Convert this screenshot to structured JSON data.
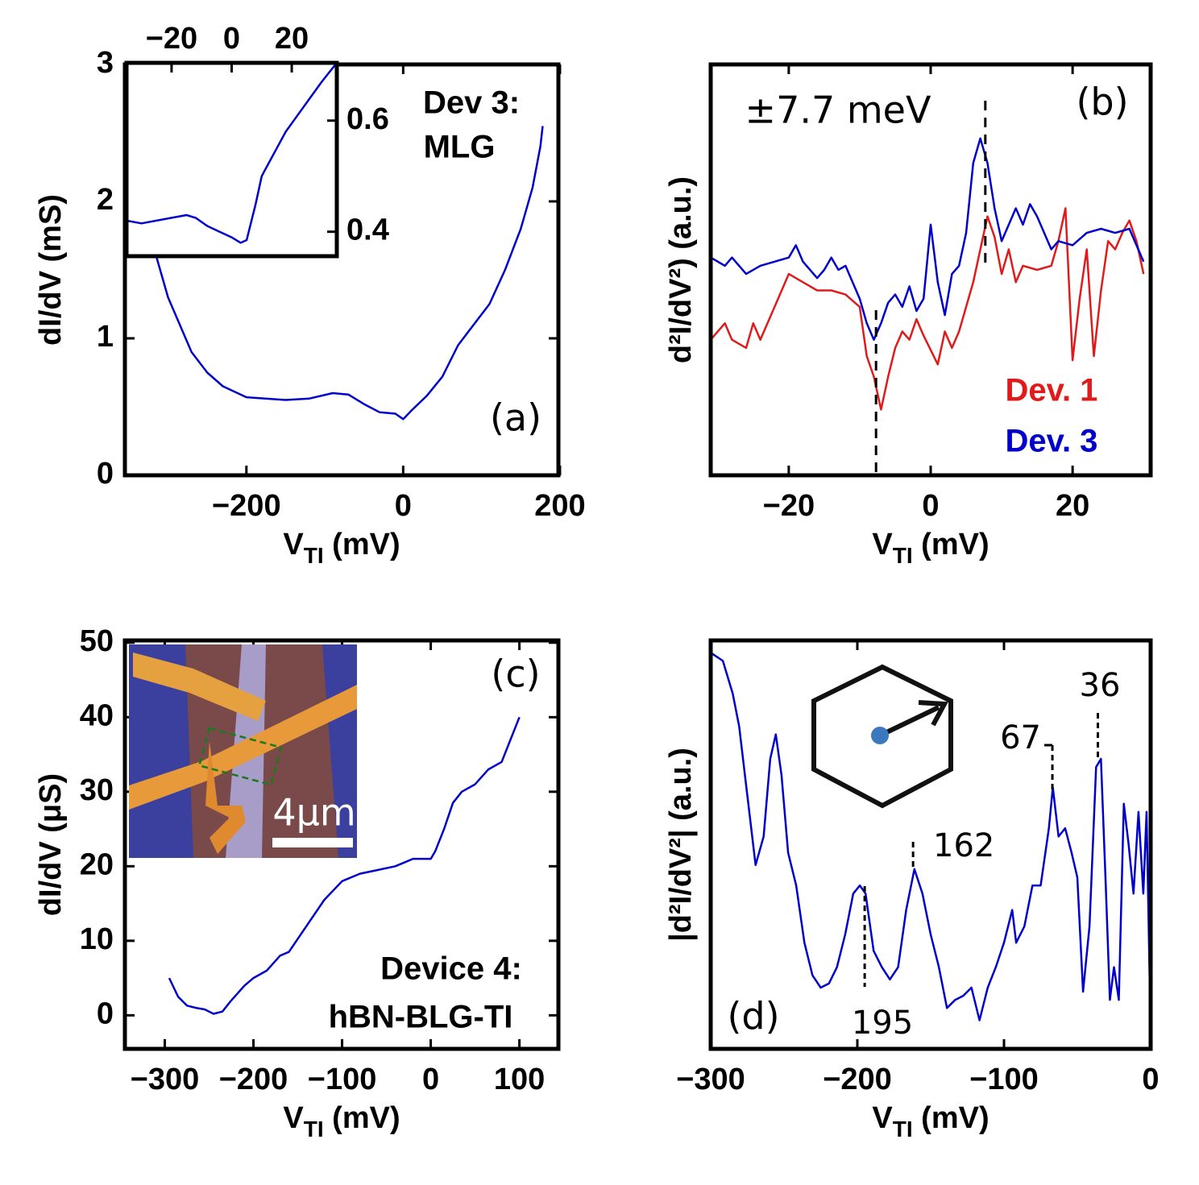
{
  "chart_data": [
    {
      "type": "line",
      "x_label": [
        "V",
        "TI",
        " (mV)"
      ],
      "y_label": "dI/dV (mS)",
      "x": [
        -315,
        -300,
        -285,
        -270,
        -250,
        -230,
        -200,
        -150,
        -120,
        -90,
        -70,
        -50,
        -30,
        -10,
        0,
        10,
        30,
        50,
        70,
        90,
        110,
        130,
        150,
        165,
        175,
        178
      ],
      "series": [
        {
          "name": "Dev 3",
          "color": "#0000cc",
          "values": [
            1.6,
            1.3,
            1.1,
            0.9,
            0.75,
            0.65,
            0.57,
            0.55,
            0.56,
            0.6,
            0.59,
            0.52,
            0.46,
            0.45,
            0.41,
            0.47,
            0.58,
            0.72,
            0.95,
            1.1,
            1.25,
            1.5,
            1.8,
            2.1,
            2.4,
            2.55
          ]
        }
      ],
      "xlim": [
        -355,
        198
      ],
      "ylim": [
        0,
        3
      ],
      "xticks": [
        {
          "value": -200,
          "label": "−200"
        },
        0,
        200
      ],
      "yticks": [
        0,
        1,
        2,
        3
      ],
      "annotations": [
        "Dev 3:",
        "MLG",
        "(a)"
      ]
    },
    {
      "type": "line",
      "x": [
        -35,
        -30,
        -20,
        -15,
        -12,
        -8,
        -4,
        0,
        3,
        5,
        8,
        10,
        12,
        15,
        18,
        22,
        26,
        30,
        35
      ],
      "series": [
        {
          "color": "#0000cc",
          "values": [
            0.42,
            0.415,
            0.425,
            0.43,
            0.425,
            0.41,
            0.4,
            0.39,
            0.38,
            0.385,
            0.45,
            0.5,
            0.52,
            0.55,
            0.58,
            0.61,
            0.64,
            0.67,
            0.704
          ]
        }
      ],
      "xlim": [
        -35,
        35
      ],
      "ylim": [
        0.356,
        0.704
      ],
      "xticks": [
        {
          "value": -20,
          "label": "−20"
        },
        0,
        20
      ],
      "yticks": [
        0.4,
        0.6
      ]
    },
    {
      "type": "line",
      "x_label": [
        "V",
        "TI",
        " (mV)"
      ],
      "y_label": "d²I/dV²) (a.u.)",
      "series": [
        {
          "name": "Dev. 1",
          "color": "#e01b1b",
          "x": [
            -31,
            -29,
            -28,
            -26,
            -25,
            -24,
            -22,
            -20,
            -18,
            -16,
            -14,
            -12,
            -10,
            -9,
            -8,
            -7,
            -6,
            -5,
            -4,
            -3,
            -2,
            -1,
            1,
            2,
            3,
            4,
            6,
            8,
            9,
            10,
            11,
            12,
            13,
            15,
            17,
            18,
            19,
            20,
            21,
            22,
            23,
            24,
            25,
            26,
            27,
            28,
            29,
            30
          ],
          "values": [
            0.33,
            0.37,
            0.33,
            0.31,
            0.37,
            0.33,
            0.41,
            0.49,
            0.47,
            0.45,
            0.45,
            0.44,
            0.41,
            0.29,
            0.24,
            0.16,
            0.24,
            0.31,
            0.35,
            0.33,
            0.38,
            0.34,
            0.27,
            0.35,
            0.31,
            0.35,
            0.47,
            0.63,
            0.58,
            0.49,
            0.55,
            0.47,
            0.51,
            0.5,
            0.51,
            0.57,
            0.65,
            0.28,
            0.43,
            0.55,
            0.29,
            0.45,
            0.57,
            0.55,
            0.59,
            0.62,
            0.57,
            0.49
          ]
        },
        {
          "name": "Dev. 3",
          "color": "#0000cc",
          "x": [
            -31,
            -29,
            -28,
            -26,
            -24,
            -22,
            -20,
            -19,
            -18,
            -16,
            -15,
            -14,
            -13,
            -12,
            -10,
            -9,
            -8,
            -7,
            -6,
            -5,
            -4,
            -3,
            -2,
            -1,
            0,
            1,
            2,
            3,
            4,
            5,
            6,
            7,
            8,
            9,
            10,
            11,
            12,
            13,
            14,
            15,
            16,
            17,
            18,
            20,
            22,
            24,
            26,
            28,
            30
          ],
          "values": [
            0.53,
            0.51,
            0.53,
            0.49,
            0.51,
            0.52,
            0.53,
            0.56,
            0.52,
            0.48,
            0.5,
            0.53,
            0.5,
            0.51,
            0.43,
            0.37,
            0.33,
            0.37,
            0.42,
            0.44,
            0.41,
            0.46,
            0.4,
            0.43,
            0.61,
            0.47,
            0.39,
            0.49,
            0.51,
            0.59,
            0.76,
            0.82,
            0.76,
            0.65,
            0.57,
            0.61,
            0.65,
            0.61,
            0.66,
            0.63,
            0.59,
            0.55,
            0.57,
            0.56,
            0.59,
            0.6,
            0.59,
            0.6,
            0.52
          ]
        }
      ],
      "xlim": [
        -31,
        31
      ],
      "ylim": [
        0,
        1
      ],
      "xticks": [
        {
          "value": -20,
          "label": "−20"
        },
        0,
        20
      ],
      "markers": [
        -7.7,
        7.7
      ],
      "annotations": [
        "±7.7 meV",
        "(b)"
      ]
    },
    {
      "type": "line",
      "x_label": [
        "V",
        "TI",
        " (mV)"
      ],
      "y_label": "dI/dV (μS)",
      "x": [
        -295,
        -285,
        -275,
        -265,
        -255,
        -245,
        -235,
        -225,
        -210,
        -200,
        -185,
        -170,
        -160,
        -140,
        -120,
        -100,
        -80,
        -60,
        -40,
        -20,
        -5,
        0,
        5,
        15,
        25,
        35,
        50,
        65,
        80,
        90,
        100
      ],
      "series": [
        {
          "color": "#0000cc",
          "values": [
            5,
            2.5,
            1.3,
            1,
            0.8,
            0.2,
            0.5,
            2,
            4,
            5,
            6,
            8,
            8.5,
            12,
            15.5,
            18,
            19,
            19.5,
            20,
            21,
            21,
            21,
            22,
            25,
            28.5,
            30,
            31,
            33,
            34,
            37,
            40
          ]
        }
      ],
      "xlim": [
        -345,
        144
      ],
      "ylim": [
        -4.5,
        50.3
      ],
      "xticks": [
        {
          "value": -300,
          "label": "−300"
        },
        {
          "value": -200,
          "label": "−200"
        },
        {
          "value": -100,
          "label": "−100"
        },
        0,
        100
      ],
      "yticks": [
        0,
        10,
        20,
        30,
        40,
        50
      ],
      "annotations": [
        "(c)",
        "Device 4:",
        "hBN-BLG-TI",
        "4μm"
      ]
    },
    {
      "type": "line",
      "x_label": [
        "V",
        "TI",
        " (mV)"
      ],
      "y_label": "|d²I/dV²| (a.u.)",
      "x": [
        -300,
        -291.7,
        -285,
        -280.6,
        -275,
        -269.4,
        -263.9,
        -259.4,
        -255.6,
        -251.7,
        -247.2,
        -241.7,
        -236.1,
        -230.6,
        -225,
        -219.4,
        -213.9,
        -208.3,
        -202.8,
        -198.3,
        -194.4,
        -188.9,
        -183.3,
        -177.8,
        -172.2,
        -166.7,
        -161.1,
        -155.6,
        -150,
        -144.4,
        -138.9,
        -133.3,
        -127.8,
        -122.2,
        -116.7,
        -111.1,
        -105.6,
        -100,
        -94.4,
        -91.7,
        -86.1,
        -80.6,
        -75,
        -69.4,
        -66.7,
        -62.8,
        -58.3,
        -53.9,
        -50,
        -46.1,
        -41.7,
        -37.2,
        -33.9,
        -30.6,
        -27.8,
        -25,
        -21.7,
        -18.3,
        -15,
        -11.7,
        -8.3,
        -5,
        -2.8,
        0
      ],
      "series": [
        {
          "color": "#0000cc",
          "values": [
            0.97,
            0.95,
            0.87,
            0.79,
            0.62,
            0.45,
            0.52,
            0.71,
            0.77,
            0.67,
            0.48,
            0.4,
            0.26,
            0.18,
            0.15,
            0.16,
            0.2,
            0.28,
            0.38,
            0.4,
            0.38,
            0.24,
            0.2,
            0.17,
            0.2,
            0.34,
            0.44,
            0.38,
            0.28,
            0.2,
            0.1,
            0.12,
            0.13,
            0.15,
            0.07,
            0.15,
            0.2,
            0.26,
            0.34,
            0.26,
            0.3,
            0.4,
            0.4,
            0.54,
            0.64,
            0.52,
            0.54,
            0.48,
            0.42,
            0.14,
            0.3,
            0.69,
            0.71,
            0.4,
            0.12,
            0.2,
            0.12,
            0.6,
            0.5,
            0.38,
            0.58,
            0.38,
            0.58,
            0.04
          ]
        }
      ],
      "xlim": [
        -300,
        0
      ],
      "ylim": [
        0,
        1
      ],
      "xticks": [
        {
          "value": -300,
          "label": "−300"
        },
        {
          "value": -200,
          "label": "−200"
        },
        {
          "value": -100,
          "label": "−100"
        },
        0
      ],
      "peaks": [
        {
          "x": -195,
          "label": "195"
        },
        {
          "x": -162,
          "label": "162"
        },
        {
          "x": -67,
          "label": "67"
        },
        {
          "x": -36,
          "label": "36"
        }
      ],
      "annotations": [
        "(d)"
      ]
    }
  ]
}
